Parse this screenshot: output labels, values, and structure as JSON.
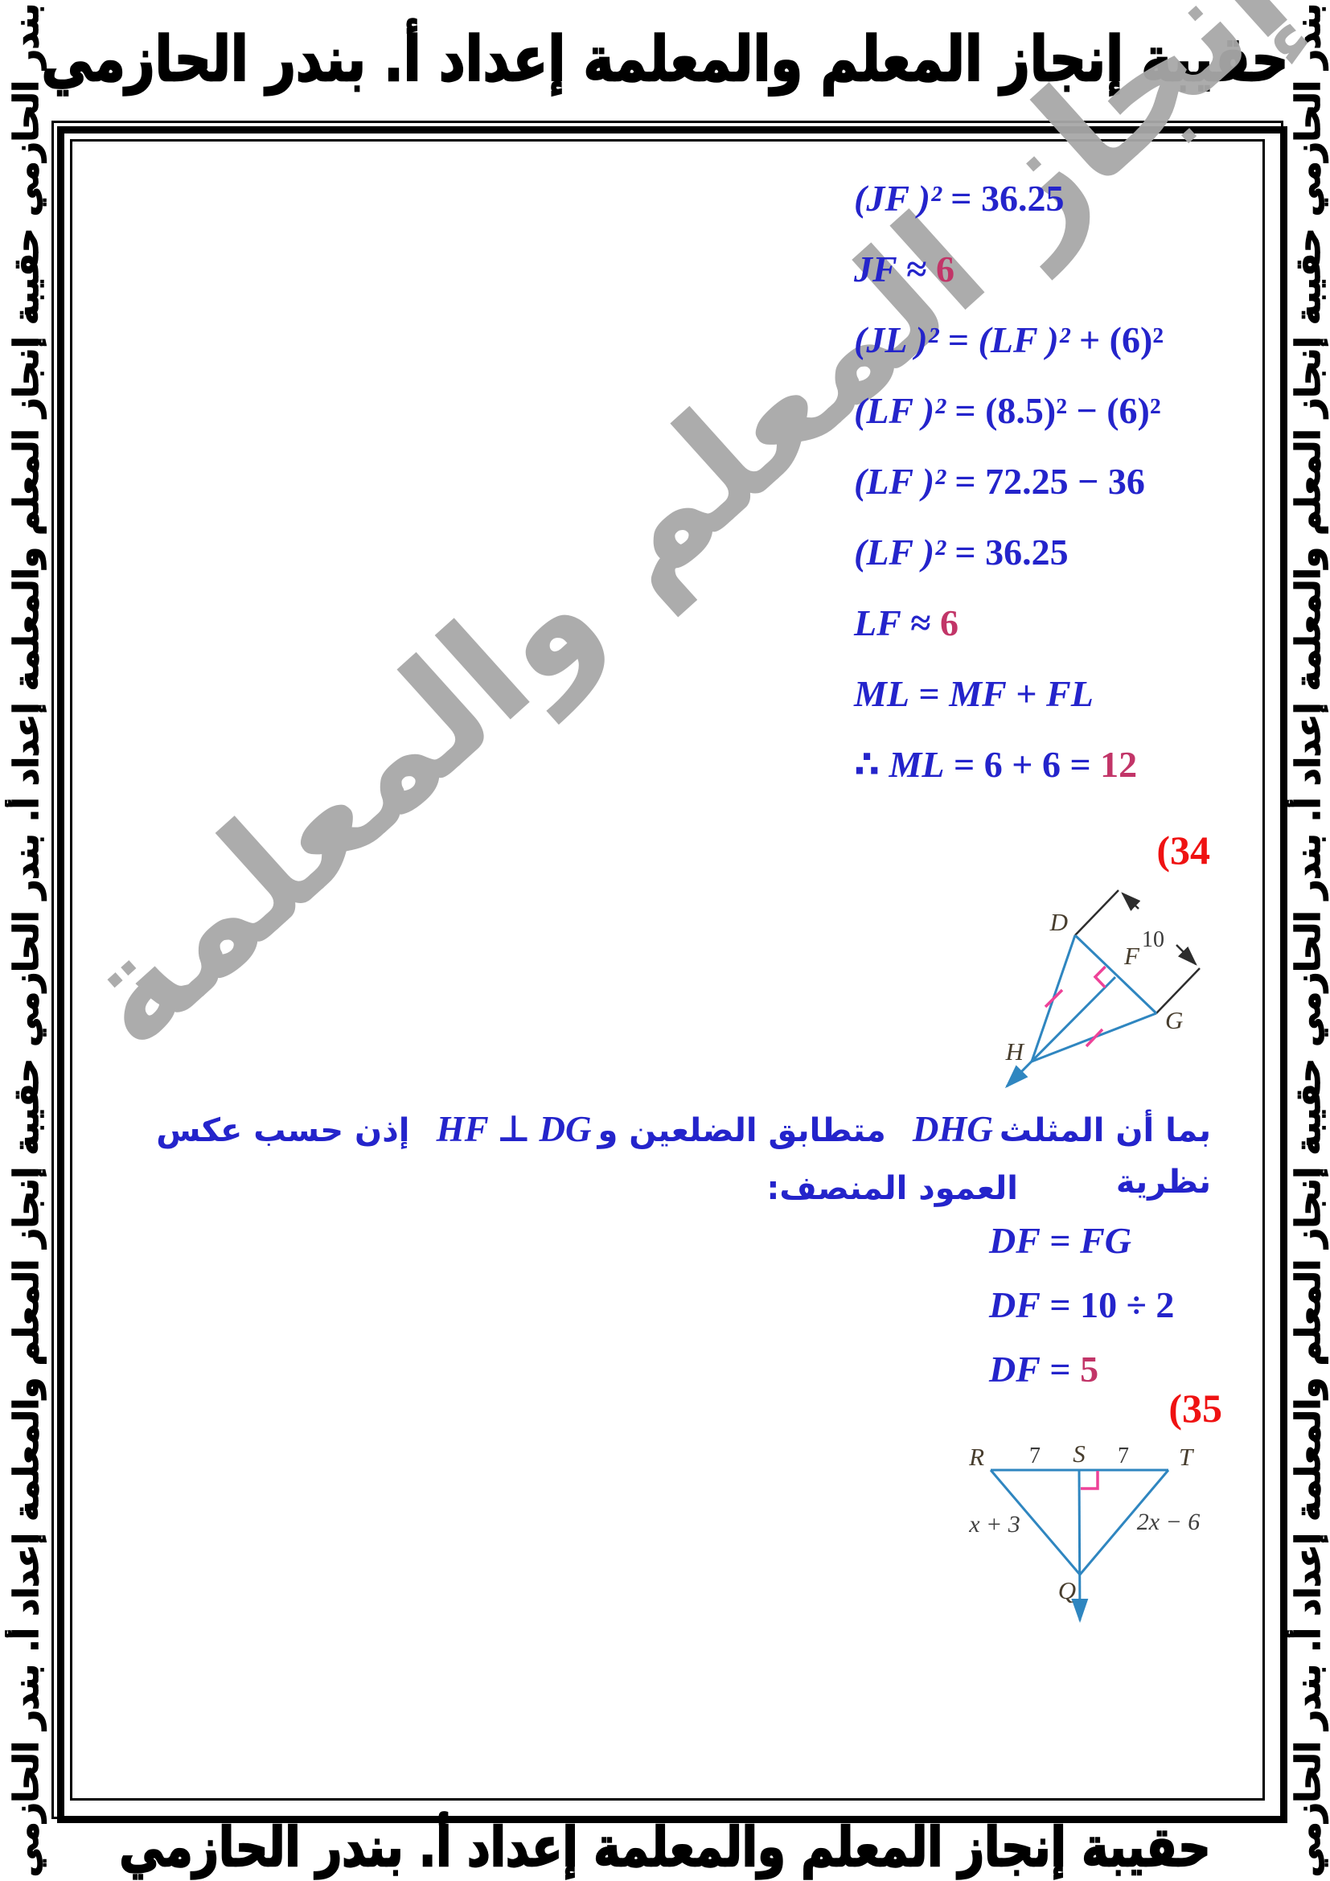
{
  "banners": {
    "top": "حقيبة إنجاز المعلم والمعلمة إعداد أ. بندر الحازمي",
    "bottom": "حقيبة إنجاز المعلم والمعلمة إعداد أ. بندر الحازمي",
    "side": "حقيبة إنجاز المعلم والمعلمة إعداد أ. بندر الحازمي",
    "watermark": "حقيبة إنجاز المعلم والمعلمة"
  },
  "colors": {
    "math_blue": "#2424cb",
    "result_crimson": "#c23568",
    "problem_red": "#ef1212",
    "figure_blue": "#2f86c0",
    "tick_pink": "#ee4298",
    "watermark_gray": "#a8a8a8"
  },
  "solution_33": {
    "lines": [
      [
        {
          "t": "(JF )²",
          "v": 1
        },
        {
          "t": " = 36.25"
        }
      ],
      [
        {
          "t": "JF",
          "v": 1
        },
        {
          "t": " ≈ "
        },
        {
          "t": "6",
          "c": "res"
        }
      ],
      [
        {
          "t": "(JL )²",
          "v": 1
        },
        {
          "t": " = "
        },
        {
          "t": "(LF )²",
          "v": 1
        },
        {
          "t": " + (6)²"
        }
      ],
      [
        {
          "t": "(LF )²",
          "v": 1
        },
        {
          "t": " = (8.5)² − (6)²"
        }
      ],
      [
        {
          "t": "(LF )²",
          "v": 1
        },
        {
          "t": " = 72.25 − 36"
        }
      ],
      [
        {
          "t": "(LF )²",
          "v": 1
        },
        {
          "t": " = 36.25"
        }
      ],
      [
        {
          "t": "LF",
          "v": 1
        },
        {
          "t": " ≈ "
        },
        {
          "t": "6",
          "c": "res"
        }
      ],
      [
        {
          "t": "ML",
          "v": 1
        },
        {
          "t": " = "
        },
        {
          "t": "MF",
          "v": 1
        },
        {
          "t": " + "
        },
        {
          "t": "FL",
          "v": 1
        }
      ],
      [
        {
          "t": "∴ "
        },
        {
          "t": "ML",
          "v": 1
        },
        {
          "t": " = 6 + 6 = "
        },
        {
          "t": "12",
          "c": "res"
        }
      ]
    ]
  },
  "problem_34": {
    "number": "(34",
    "figure": {
      "label_d": "D",
      "label_f": "F",
      "label_g": "G",
      "label_h": "H",
      "dimension": "10"
    },
    "note_line1": [
      {
        "t": "بما أن المثلث",
        "c": "ar"
      },
      {
        "t": "DHG",
        "c": "math"
      },
      {
        "t": "متطابق الضلعين و",
        "c": "ar"
      },
      {
        "t": "HF ⊥ DG",
        "c": "math"
      },
      {
        "t": "إذن حسب عكس نظرية",
        "c": "ar"
      }
    ],
    "note_line2": "العمود المنصف:",
    "solution": {
      "lines": [
        [
          {
            "t": "DF",
            "v": 1
          },
          {
            "t": " = "
          },
          {
            "t": "FG",
            "v": 1
          }
        ],
        [
          {
            "t": "DF",
            "v": 1
          },
          {
            "t": " = 10 ÷ 2"
          }
        ],
        [
          {
            "t": "DF",
            "v": 1
          },
          {
            "t": " = "
          },
          {
            "t": "5",
            "c": "res"
          }
        ]
      ]
    }
  },
  "problem_35": {
    "number": "(35",
    "figure": {
      "label_r": "R",
      "label_s": "S",
      "label_t": "T",
      "label_q": "Q",
      "seg_rs": "7",
      "seg_st": "7",
      "side_rq": "x + 3",
      "side_tq": "2x − 6"
    }
  }
}
